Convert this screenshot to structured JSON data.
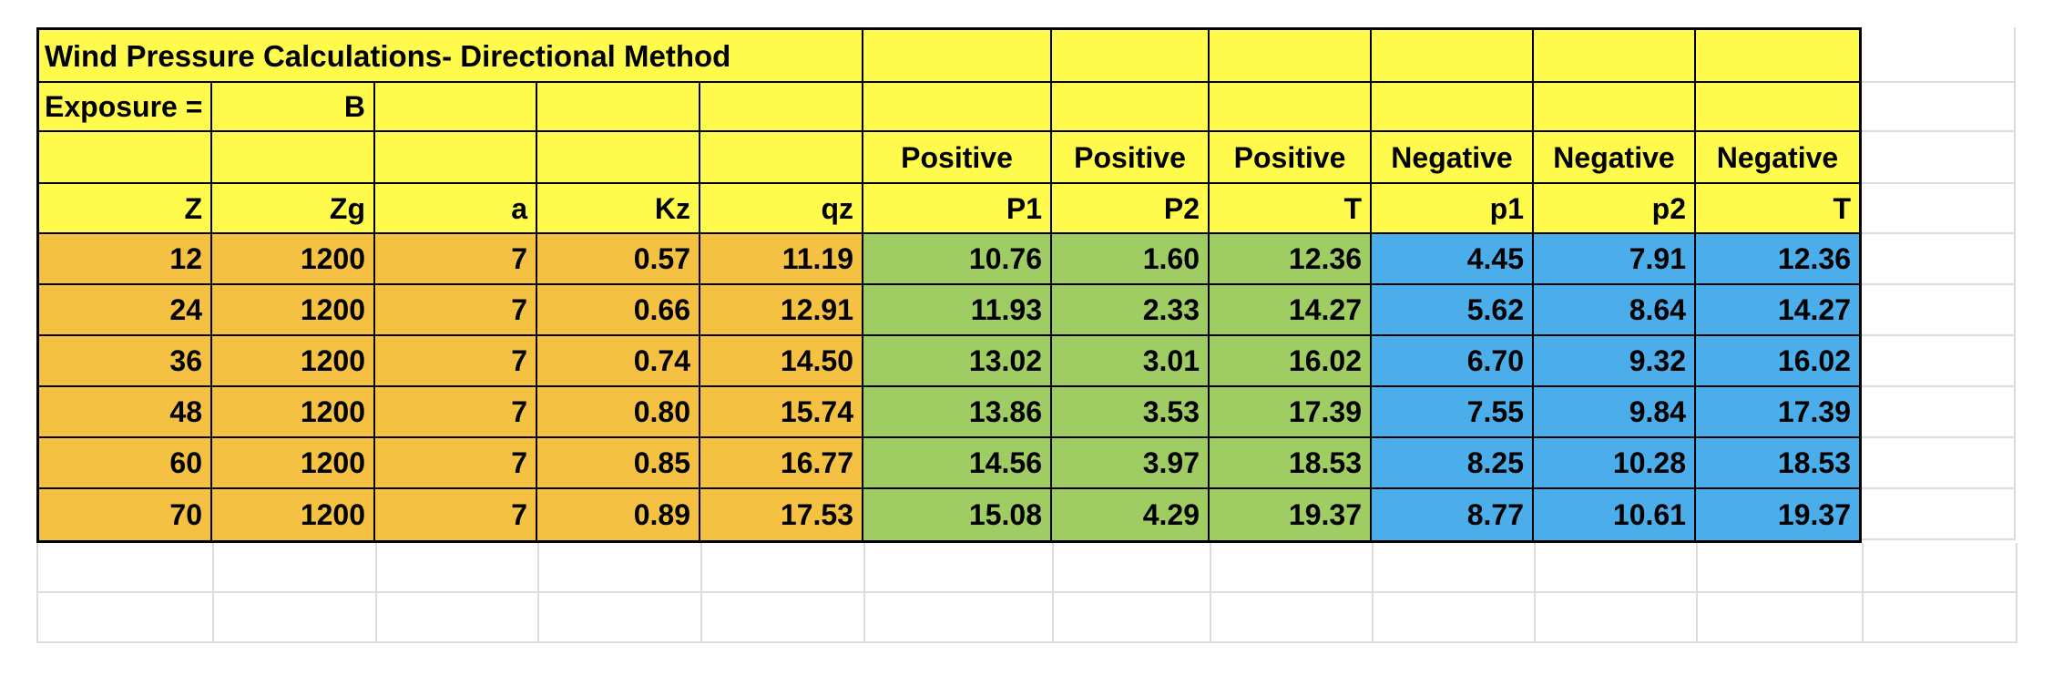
{
  "sheet": {
    "title": "Wind Pressure Calculations- Directional Method",
    "exposure": {
      "label": "Exposure =",
      "value": "B"
    },
    "group_headers": [
      "Positive",
      "Positive",
      "Positive",
      "Negative",
      "Negative",
      "Negative"
    ],
    "column_headers": [
      "Z",
      "Zg",
      "a",
      "Kz",
      "qz",
      "P1",
      "P2",
      "T",
      "p1",
      "p2",
      "T"
    ],
    "rows": [
      [
        "12",
        "1200",
        "7",
        "0.57",
        "11.19",
        "10.76",
        "1.60",
        "12.36",
        "4.45",
        "7.91",
        "12.36"
      ],
      [
        "24",
        "1200",
        "7",
        "0.66",
        "12.91",
        "11.93",
        "2.33",
        "14.27",
        "5.62",
        "8.64",
        "14.27"
      ],
      [
        "36",
        "1200",
        "7",
        "0.74",
        "14.50",
        "13.02",
        "3.01",
        "16.02",
        "6.70",
        "9.32",
        "16.02"
      ],
      [
        "48",
        "1200",
        "7",
        "0.80",
        "15.74",
        "13.86",
        "3.53",
        "17.39",
        "7.55",
        "9.84",
        "17.39"
      ],
      [
        "60",
        "1200",
        "7",
        "0.85",
        "16.77",
        "14.56",
        "3.97",
        "18.53",
        "8.25",
        "10.28",
        "18.53"
      ],
      [
        "70",
        "1200",
        "7",
        "0.89",
        "17.53",
        "15.08",
        "4.29",
        "19.37",
        "8.77",
        "10.61",
        "19.37"
      ]
    ],
    "colors": {
      "header_fill": "#FFFB4D",
      "z_table_fill": "#F5C142",
      "positive_fill": "#A0CC64",
      "negative_fill": "#4BADE9",
      "table_border": "#000000",
      "empty_gridline": "#DCDCDC"
    }
  }
}
